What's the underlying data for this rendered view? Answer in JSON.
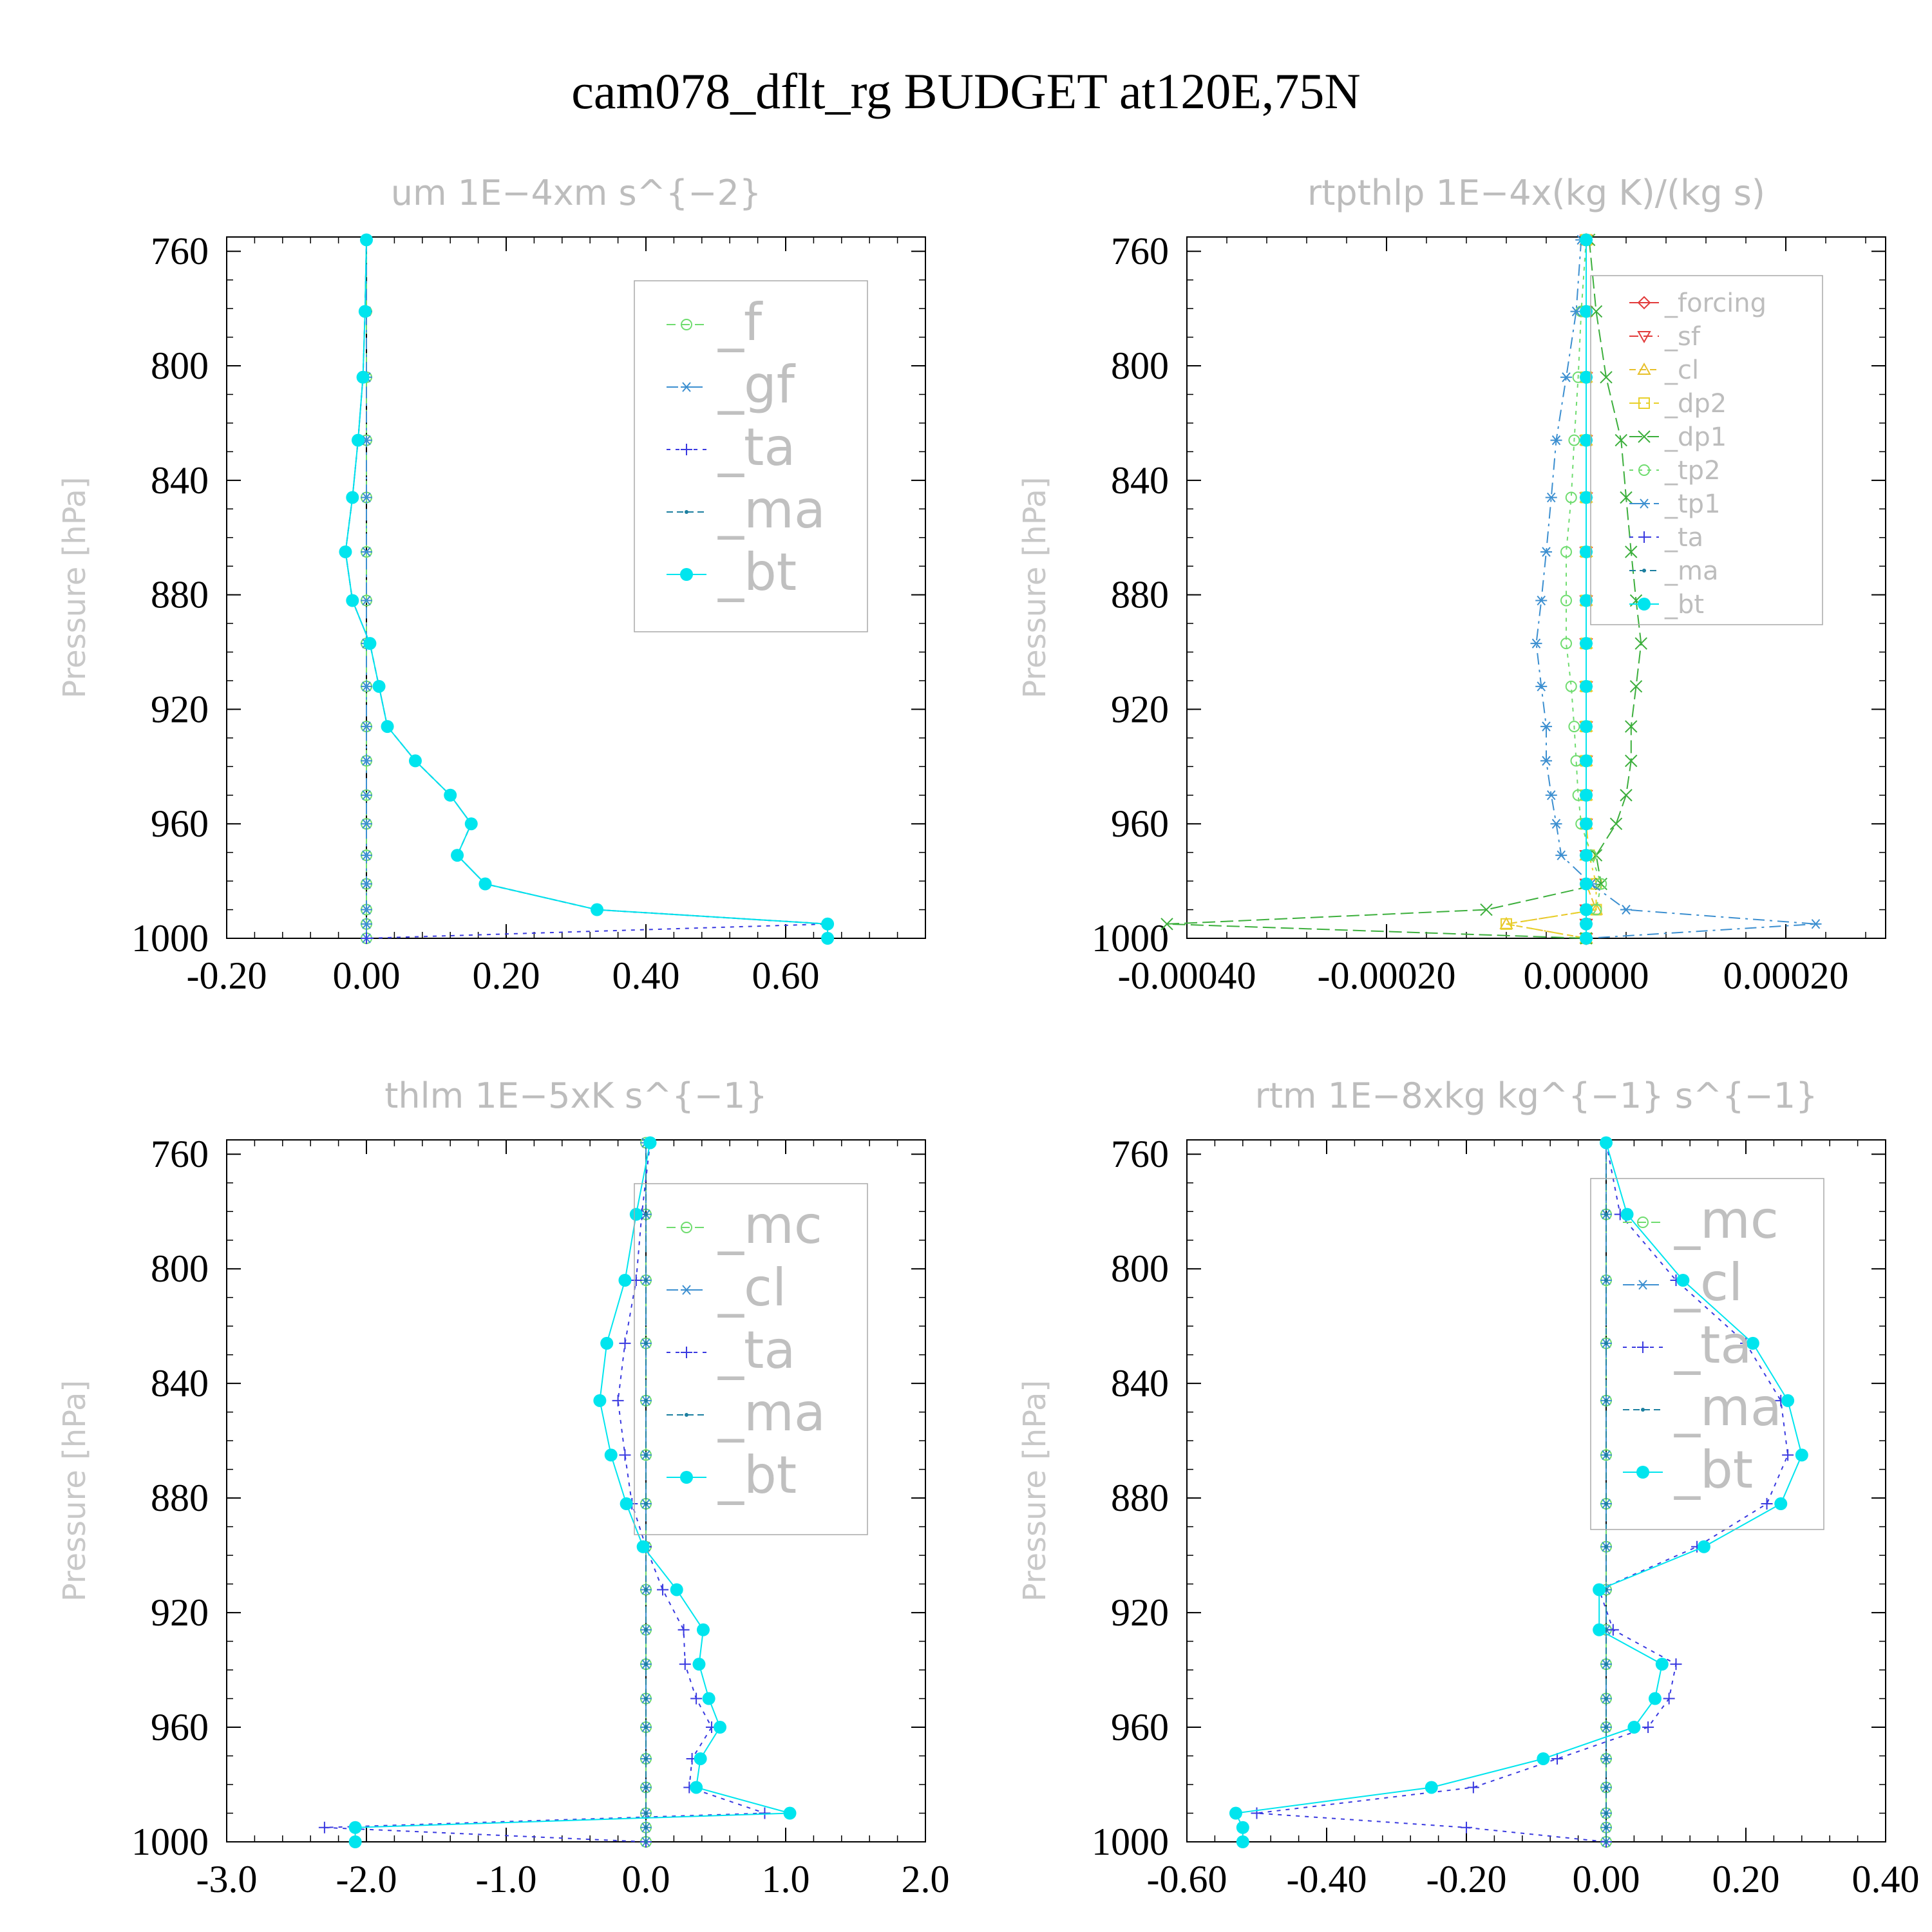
{
  "title": "cam078_dflt_rg  BUDGET at120E,75N",
  "colors": {
    "f": "#6fdc6f",
    "gf": "#3c8fd0",
    "ta": "#3a3ae0",
    "ma": "#1c7fa0",
    "bt": "#00e5ee",
    "mc": "#6fdc6f",
    "cl_um": "#3c8fd0",
    "forcing": "#e23b3b",
    "sf": "#e23b3b",
    "cl": "#e8c02a",
    "dp2": "#e8d02a",
    "dp1": "#3caf3c",
    "tp2": "#6fdc6f",
    "tp1": "#3c8fd0",
    "frame": "#000000",
    "zero_line": "#000000"
  },
  "chart_data": [
    {
      "type": "line",
      "title": "um   1E−4xm s^{−2}",
      "ylabel": "Pressure [hPa]",
      "ylim": [
        1000,
        755
      ],
      "xlim": [
        -0.2,
        0.8
      ],
      "xticks": [
        -0.2,
        0.0,
        0.2,
        0.4,
        0.6
      ],
      "xtick_labels": [
        "-0.20",
        "0.00",
        "0.20",
        "0.40",
        "0.60"
      ],
      "yticks": [
        760,
        800,
        840,
        880,
        920,
        960,
        1000
      ],
      "ytick_labels": [
        "760",
        "800",
        "840",
        "880",
        "920",
        "960",
        "1000"
      ],
      "legend_style": "large",
      "legend_position": "top-right",
      "pressure": [
        756,
        781,
        804,
        826,
        846,
        865,
        882,
        897,
        912,
        926,
        938,
        950,
        960,
        971,
        981,
        990,
        995,
        1000
      ],
      "series": [
        {
          "name": "_f",
          "color_key": "f",
          "marker": "circle-open",
          "dash": "14,8",
          "values": [
            0,
            0,
            0,
            0,
            0,
            0,
            0,
            0,
            0,
            0,
            0,
            0,
            0,
            0,
            0,
            0,
            0,
            0
          ]
        },
        {
          "name": "_gf",
          "color_key": "gf",
          "marker": "star",
          "dash": "18,8,4,8",
          "values": [
            0,
            0,
            0,
            0,
            0,
            0,
            0,
            0,
            0,
            0,
            0,
            0,
            0,
            0,
            0,
            0,
            0,
            0
          ]
        },
        {
          "name": "_ta",
          "color_key": "ta",
          "marker": "plus",
          "dash": "6,8",
          "values": [
            0,
            -0.002,
            -0.005,
            -0.012,
            -0.02,
            -0.03,
            -0.02,
            0.005,
            0.018,
            0.03,
            0.07,
            0.12,
            0.15,
            0.13,
            0.17,
            0.33,
            0.66,
            0.0
          ]
        },
        {
          "name": "_ma",
          "color_key": "ma",
          "marker": "dot",
          "dash": "10,6",
          "values": [
            0,
            -0.002,
            -0.005,
            -0.012,
            -0.02,
            -0.03,
            -0.02,
            0.005,
            0.018,
            0.03,
            0.07,
            0.12,
            0.15,
            0.13,
            0.17,
            0.33,
            0.66,
            0.66
          ]
        },
        {
          "name": "_bt",
          "color_key": "bt",
          "marker": "circle-filled",
          "dash": "none",
          "values": [
            0,
            -0.002,
            -0.005,
            -0.012,
            -0.02,
            -0.03,
            -0.02,
            0.005,
            0.018,
            0.03,
            0.07,
            0.12,
            0.15,
            0.13,
            0.17,
            0.33,
            0.66,
            0.66
          ]
        }
      ]
    },
    {
      "type": "line",
      "title": "rtpthlp   1E−4x(kg K)/(kg s)",
      "ylabel": "Pressure [hPa]",
      "ylim": [
        1000,
        755
      ],
      "xlim": [
        -0.0004,
        0.0003
      ],
      "xticks": [
        -0.0004,
        -0.0002,
        0.0,
        0.0002
      ],
      "xtick_labels": [
        "-0.00040",
        "-0.00020",
        "0.00000",
        "0.00020"
      ],
      "yticks": [
        760,
        800,
        840,
        880,
        920,
        960,
        1000
      ],
      "ytick_labels": [
        "760",
        "800",
        "840",
        "880",
        "920",
        "960",
        "1000"
      ],
      "legend_style": "small",
      "legend_position": "top-right",
      "pressure": [
        756,
        781,
        804,
        826,
        846,
        865,
        882,
        897,
        912,
        926,
        938,
        950,
        960,
        971,
        981,
        990,
        995,
        1000
      ],
      "series": [
        {
          "name": "_forcing",
          "color_key": "forcing",
          "marker": "diamond-open",
          "dash": "none",
          "values": [
            0,
            0,
            0,
            0,
            0,
            0,
            0,
            0,
            0,
            0,
            0,
            0,
            0,
            0,
            0,
            0,
            0,
            0
          ]
        },
        {
          "name": "_sf",
          "color_key": "sf",
          "marker": "triangle-down",
          "dash": "14,8",
          "values": [
            0,
            0,
            0,
            0,
            0,
            0,
            0,
            0,
            0,
            0,
            0,
            0,
            0,
            0,
            0,
            0,
            0,
            0
          ]
        },
        {
          "name": "_cl",
          "color_key": "cl",
          "marker": "triangle-up",
          "dash": "10,6",
          "values": [
            0,
            0,
            0,
            0,
            0,
            0,
            0,
            0,
            0,
            0,
            0,
            0,
            0,
            0,
            0,
            1e-05,
            -8e-05,
            0
          ]
        },
        {
          "name": "_dp2",
          "color_key": "dp2",
          "marker": "square-open",
          "dash": "18,8,4,8",
          "values": [
            0,
            0,
            0,
            0,
            0,
            0,
            0,
            0,
            0,
            0,
            0,
            0,
            0,
            3e-06,
            1e-05,
            1e-05,
            -8e-05,
            0
          ]
        },
        {
          "name": "_dp1",
          "color_key": "dp1",
          "marker": "x",
          "dash": "20,8",
          "values": [
            3e-06,
            1e-05,
            2e-05,
            3.5e-05,
            4e-05,
            4.5e-05,
            5e-05,
            5.5e-05,
            5e-05,
            4.5e-05,
            4.5e-05,
            4e-05,
            3e-05,
            1e-05,
            1.5e-05,
            -0.0001,
            -0.00042,
            0.0
          ]
        },
        {
          "name": "_tp2",
          "color_key": "tp2",
          "marker": "circle-open",
          "dash": "6,8",
          "values": [
            0,
            -5e-06,
            -8e-06,
            -1.2e-05,
            -1.5e-05,
            -2e-05,
            -2e-05,
            -2e-05,
            -1.5e-05,
            -1.2e-05,
            -1e-05,
            -8e-06,
            -5e-06,
            5e-06,
            1.5e-05,
            1e-05,
            0,
            0
          ]
        },
        {
          "name": "_tp1",
          "color_key": "tp1",
          "marker": "star",
          "dash": "18,8,4,8",
          "values": [
            -5e-06,
            -1e-05,
            -2e-05,
            -3e-05,
            -3.5e-05,
            -4e-05,
            -4.5e-05,
            -5e-05,
            -4.5e-05,
            -4e-05,
            -4e-05,
            -3.5e-05,
            -3e-05,
            -2.5e-05,
            5e-06,
            4e-05,
            0.00023,
            0
          ]
        },
        {
          "name": "_ta",
          "color_key": "ta",
          "marker": "plus",
          "dash": "6,8",
          "values": [
            0,
            0,
            0,
            0,
            0,
            0,
            0,
            0,
            0,
            0,
            0,
            0,
            0,
            0,
            0,
            0,
            0,
            0
          ]
        },
        {
          "name": "_ma",
          "color_key": "ma",
          "marker": "dot",
          "dash": "10,6",
          "values": [
            0,
            0,
            0,
            0,
            0,
            0,
            0,
            0,
            0,
            0,
            0,
            0,
            0,
            0,
            0,
            0,
            0,
            0
          ]
        },
        {
          "name": "_bt",
          "color_key": "bt",
          "marker": "circle-filled",
          "dash": "none",
          "values": [
            0,
            0,
            0,
            0,
            0,
            0,
            0,
            0,
            0,
            0,
            0,
            0,
            0,
            0,
            0,
            0,
            0,
            0
          ]
        }
      ]
    },
    {
      "type": "line",
      "title": "thlm   1E−5xK s^{−1}",
      "ylabel": "Pressure [hPa]",
      "ylim": [
        1000,
        755
      ],
      "xlim": [
        -3.0,
        2.0
      ],
      "xticks": [
        -3.0,
        -2.0,
        -1.0,
        0.0,
        1.0,
        2.0
      ],
      "xtick_labels": [
        "-3.0",
        "-2.0",
        "-1.0",
        "0.0",
        "1.0",
        "2.0"
      ],
      "yticks": [
        760,
        800,
        840,
        880,
        920,
        960,
        1000
      ],
      "ytick_labels": [
        "760",
        "800",
        "840",
        "880",
        "920",
        "960",
        "1000"
      ],
      "legend_style": "large",
      "legend_position": "top-right",
      "pressure": [
        756,
        781,
        804,
        826,
        846,
        865,
        882,
        897,
        912,
        926,
        938,
        950,
        960,
        971,
        981,
        990,
        995,
        1000
      ],
      "series": [
        {
          "name": "_mc",
          "color_key": "mc",
          "marker": "circle-open",
          "dash": "14,8",
          "values": [
            0,
            0,
            0,
            0,
            0,
            0,
            0,
            0,
            0,
            0,
            0,
            0,
            0,
            0,
            0,
            0,
            0,
            0
          ]
        },
        {
          "name": "_cl",
          "color_key": "cl_um",
          "marker": "star",
          "dash": "18,8,4,8",
          "values": [
            0,
            0,
            0,
            0,
            0,
            0,
            0,
            0,
            0,
            0,
            0,
            0,
            0,
            0,
            0,
            0,
            0,
            0
          ]
        },
        {
          "name": "_ta",
          "color_key": "ta",
          "marker": "plus",
          "dash": "6,8",
          "values": [
            0.03,
            -0.03,
            -0.07,
            -0.15,
            -0.2,
            -0.15,
            -0.1,
            0.0,
            0.12,
            0.27,
            0.28,
            0.36,
            0.47,
            0.33,
            0.31,
            0.85,
            -2.3,
            0.0
          ]
        },
        {
          "name": "_ma",
          "color_key": "ma",
          "marker": "dot",
          "dash": "10,6",
          "values": [
            0,
            0,
            0,
            0,
            0,
            0,
            0,
            0,
            0,
            0,
            0,
            0,
            0,
            0,
            0,
            0,
            0,
            0
          ]
        },
        {
          "name": "_bt",
          "color_key": "bt",
          "marker": "circle-filled",
          "dash": "none",
          "values": [
            0.03,
            -0.07,
            -0.15,
            -0.28,
            -0.33,
            -0.25,
            -0.14,
            -0.02,
            0.22,
            0.41,
            0.38,
            0.45,
            0.53,
            0.39,
            0.36,
            1.03,
            -2.08,
            -2.08
          ]
        }
      ]
    },
    {
      "type": "line",
      "title": "rtm   1E−8xkg kg^{−1} s^{−1}",
      "ylabel": "Pressure [hPa]",
      "ylim": [
        1000,
        755
      ],
      "xlim": [
        -0.6,
        0.4
      ],
      "xticks": [
        -0.6,
        -0.4,
        -0.2,
        0.0,
        0.2,
        0.4
      ],
      "xtick_labels": [
        "-0.60",
        "-0.40",
        "-0.20",
        "0.00",
        "0.20",
        "0.40"
      ],
      "yticks": [
        760,
        800,
        840,
        880,
        920,
        960,
        1000
      ],
      "ytick_labels": [
        "760",
        "800",
        "840",
        "880",
        "920",
        "960",
        "1000"
      ],
      "legend_style": "large",
      "legend_position": "top-right",
      "pressure": [
        756,
        781,
        804,
        826,
        846,
        865,
        882,
        897,
        912,
        926,
        938,
        950,
        960,
        971,
        981,
        990,
        995,
        1000
      ],
      "series": [
        {
          "name": "_mc",
          "color_key": "mc",
          "marker": "circle-open",
          "dash": "14,8",
          "values": [
            0,
            0,
            0,
            0,
            0,
            0,
            0,
            0,
            0,
            0,
            0,
            0,
            0,
            0,
            0,
            0,
            0,
            0
          ]
        },
        {
          "name": "_cl",
          "color_key": "cl_um",
          "marker": "star",
          "dash": "18,8,4,8",
          "values": [
            0,
            0,
            0,
            0,
            0,
            0,
            0,
            0,
            0,
            0,
            0,
            0,
            0,
            0,
            0,
            0,
            0,
            0
          ]
        },
        {
          "name": "_ta",
          "color_key": "ta",
          "marker": "plus",
          "dash": "6,8",
          "values": [
            0.0,
            0.02,
            0.1,
            0.2,
            0.25,
            0.26,
            0.23,
            0.13,
            -0.01,
            0.01,
            0.1,
            0.09,
            0.06,
            -0.07,
            -0.19,
            -0.5,
            -0.2,
            0.0
          ]
        },
        {
          "name": "_ma",
          "color_key": "ma",
          "marker": "dot",
          "dash": "10,6",
          "values": [
            0,
            0,
            0,
            0,
            0,
            0,
            0,
            0,
            0,
            0,
            0,
            0,
            0,
            0,
            0,
            0,
            0,
            0
          ]
        },
        {
          "name": "_bt",
          "color_key": "bt",
          "marker": "circle-filled",
          "dash": "none",
          "values": [
            0.0,
            0.03,
            0.11,
            0.21,
            0.26,
            0.28,
            0.25,
            0.14,
            -0.01,
            -0.01,
            0.08,
            0.07,
            0.04,
            -0.09,
            -0.25,
            -0.53,
            -0.52,
            -0.52
          ]
        }
      ]
    }
  ]
}
